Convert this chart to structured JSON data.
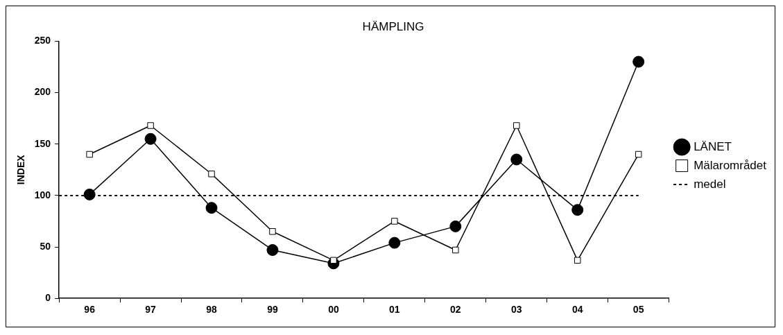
{
  "chart_data": {
    "type": "line",
    "title": "HÄMPLING",
    "ylabel": "INDEX",
    "categories": [
      "96",
      "97",
      "98",
      "99",
      "00",
      "01",
      "02",
      "03",
      "04",
      "05"
    ],
    "series": [
      {
        "name": "LÄNET",
        "color": "#000000",
        "marker": "circle",
        "values": [
          101,
          155,
          88,
          47,
          34,
          54,
          70,
          135,
          86,
          230
        ]
      },
      {
        "name": "Mälarområdet",
        "color": "#000000",
        "marker": "square",
        "values": [
          140,
          168,
          121,
          65,
          37,
          75,
          47,
          168,
          37,
          140
        ]
      }
    ],
    "ref_lines": [
      {
        "axis": "y",
        "value": 100,
        "label": "medel",
        "color": "#000000",
        "line_style": "dashed"
      }
    ],
    "ylim": [
      0,
      250
    ],
    "yticks": [
      0,
      50,
      100,
      150,
      200,
      250
    ],
    "legend": "right"
  }
}
